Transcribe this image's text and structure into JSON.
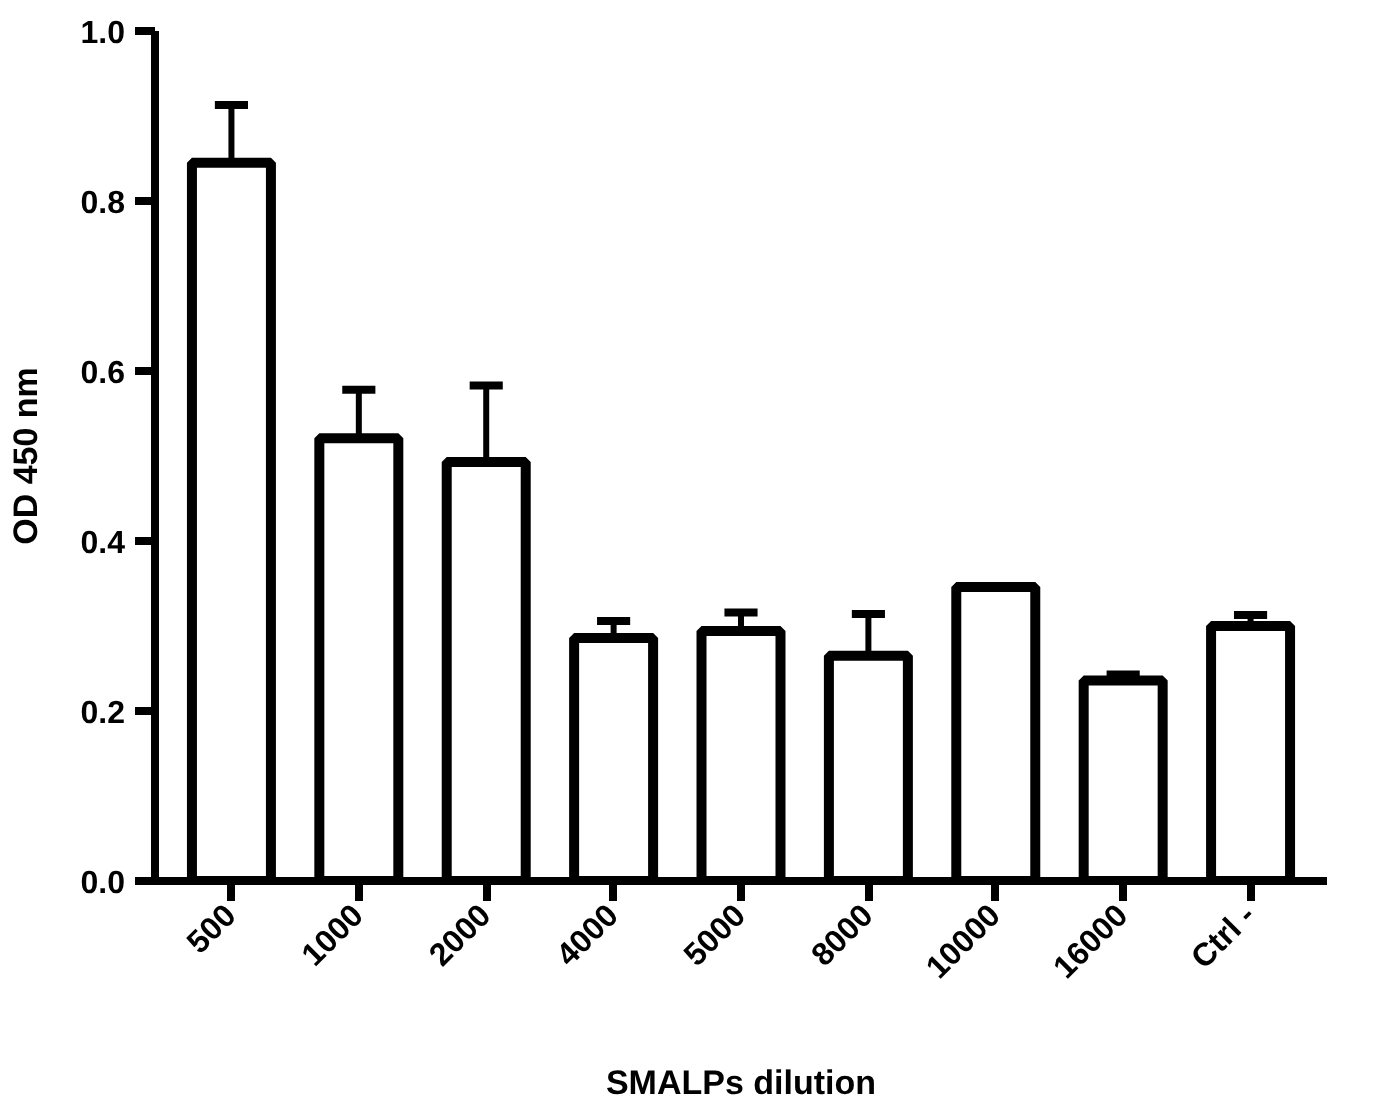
{
  "chart_data": {
    "type": "bar",
    "xlabel": "SMALPs dilution",
    "ylabel": "OD 450 nm",
    "categories": [
      "500",
      "1000",
      "2000",
      "4000",
      "5000",
      "8000",
      "10000",
      "16000",
      "Ctrl -"
    ],
    "values": [
      0.845,
      0.521,
      0.493,
      0.286,
      0.294,
      0.265,
      0.346,
      0.236,
      0.3
    ],
    "errors": [
      0.068,
      0.057,
      0.09,
      0.02,
      0.022,
      0.049,
      null,
      0.007,
      0.013
    ],
    "color": "#ffffff",
    "ylim": [
      0,
      1.0
    ],
    "yticks": [
      {
        "value": 0,
        "label": "0.0"
      },
      0.2,
      0.4,
      0.6,
      0.8,
      {
        "value": 1.0,
        "label": "1.0"
      }
    ],
    "grid": false
  }
}
